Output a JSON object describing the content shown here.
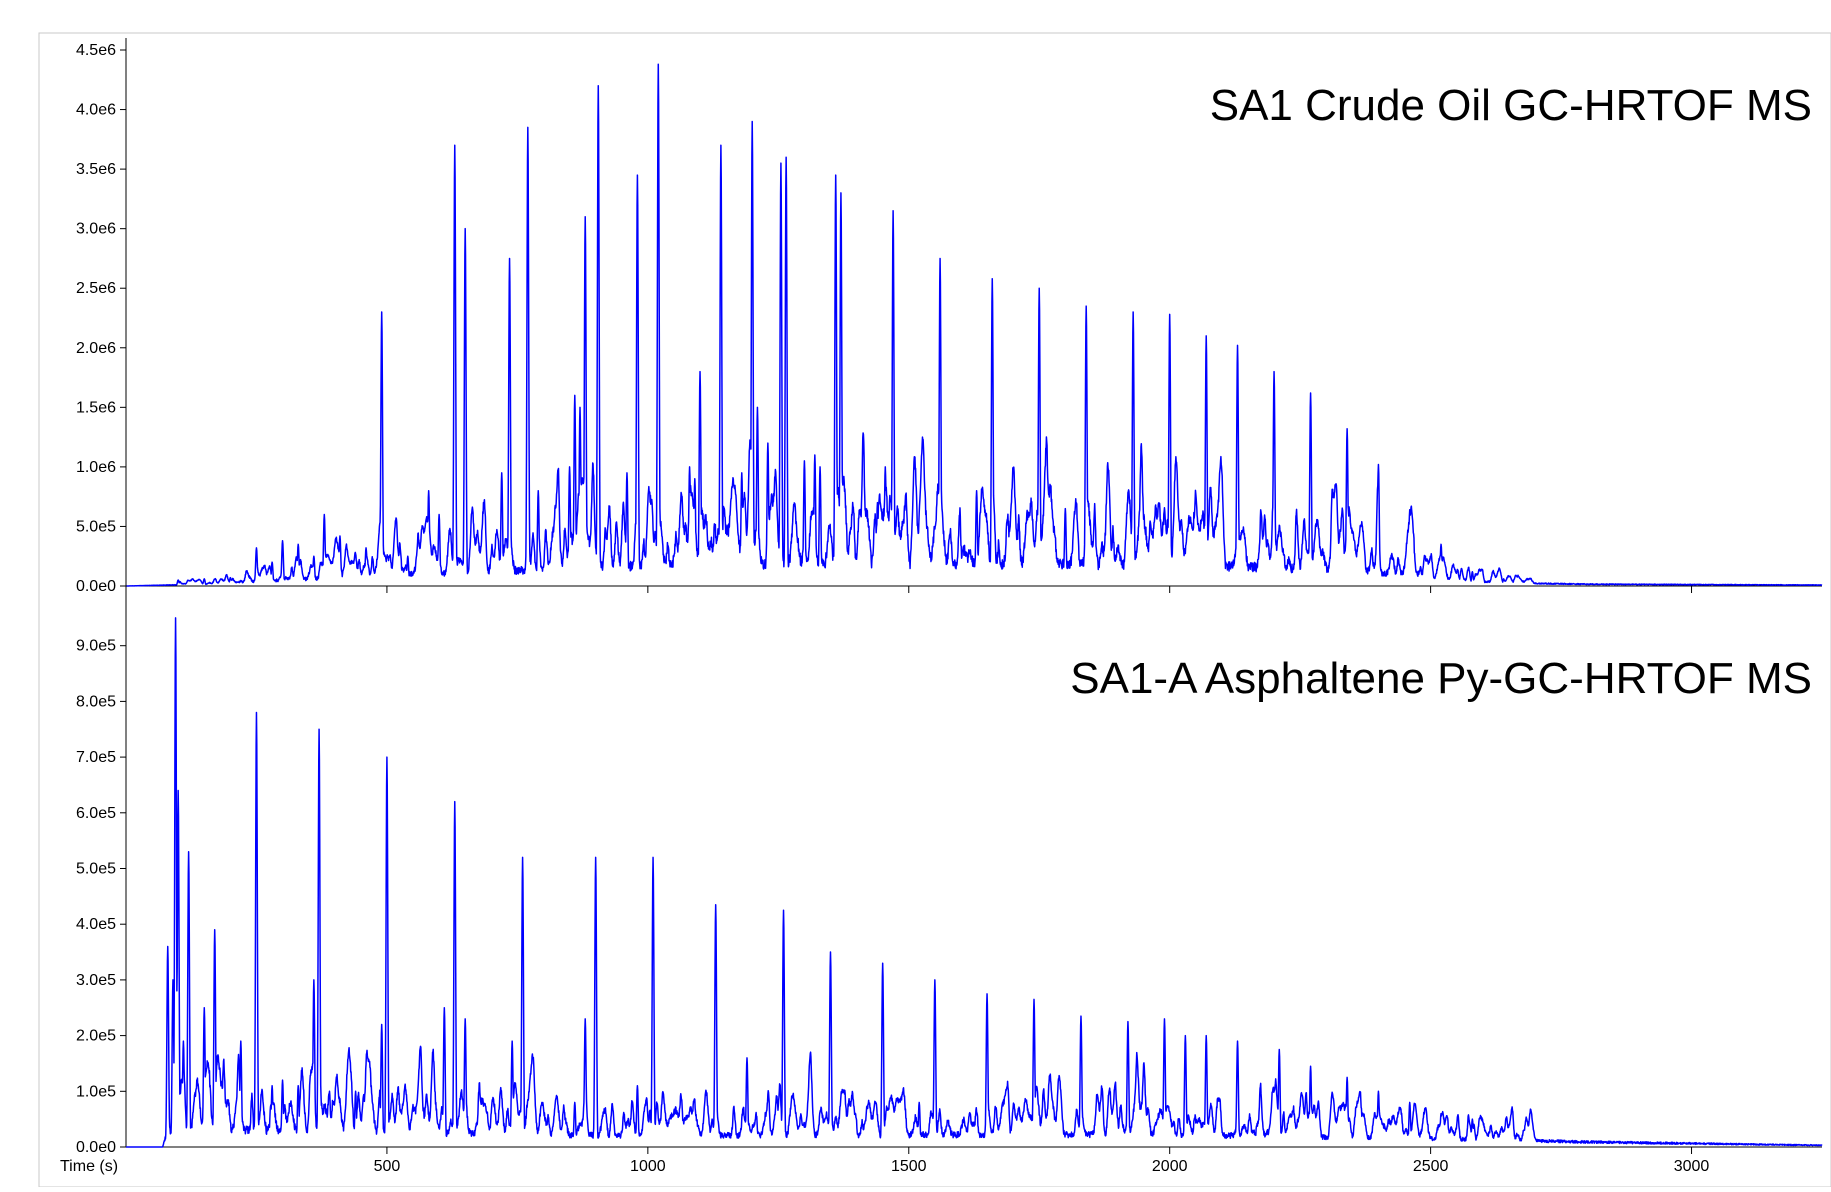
{
  "colors": {
    "series": "#0000ff",
    "axis": "#000000",
    "frame": "#c8c8c8",
    "background": "#ffffff"
  },
  "chart_data": [
    {
      "type": "line",
      "title": "SA1 Crude Oil GC-HRTOF MS",
      "xlabel": "Time (s)",
      "ylabel": "",
      "xlim": [
        0,
        3250
      ],
      "ylim": [
        0,
        4500000
      ],
      "grid": false,
      "yticks": [
        {
          "value": 0,
          "label": "0.0e0"
        },
        {
          "value": 500000,
          "label": "5.0e5"
        },
        {
          "value": 1000000,
          "label": "1.0e6"
        },
        {
          "value": 1500000,
          "label": "1.5e6"
        },
        {
          "value": 2000000,
          "label": "2.0e6"
        },
        {
          "value": 2500000,
          "label": "2.5e6"
        },
        {
          "value": 3000000,
          "label": "3.0e6"
        },
        {
          "value": 3500000,
          "label": "3.5e6"
        },
        {
          "value": 4000000,
          "label": "4.0e6"
        },
        {
          "value": 4500000,
          "label": "4.5e6"
        }
      ],
      "baseline": [
        [
          0,
          0
        ],
        [
          150,
          15000
        ],
        [
          300,
          50000
        ],
        [
          500,
          90000
        ],
        [
          800,
          140000
        ],
        [
          1000,
          170000
        ],
        [
          1500,
          190000
        ],
        [
          2000,
          180000
        ],
        [
          2300,
          140000
        ],
        [
          2450,
          100000
        ],
        [
          2550,
          50000
        ],
        [
          2650,
          25000
        ],
        [
          2800,
          15000
        ],
        [
          3250,
          8000
        ]
      ],
      "peaks": [
        [
          100,
          50000
        ],
        [
          150,
          60000
        ],
        [
          200,
          70000
        ],
        [
          250,
          320000
        ],
        [
          280,
          200000
        ],
        [
          300,
          380000
        ],
        [
          330,
          350000
        ],
        [
          360,
          250000
        ],
        [
          380,
          600000
        ],
        [
          410,
          420000
        ],
        [
          460,
          320000
        ],
        [
          490,
          2300000
        ],
        [
          540,
          250000
        ],
        [
          580,
          800000
        ],
        [
          600,
          600000
        ],
        [
          630,
          3700000
        ],
        [
          650,
          3000000
        ],
        [
          720,
          950000
        ],
        [
          735,
          2750000
        ],
        [
          770,
          3850000
        ],
        [
          790,
          800000
        ],
        [
          850,
          1000000
        ],
        [
          860,
          1600000
        ],
        [
          870,
          1500000
        ],
        [
          880,
          3100000
        ],
        [
          905,
          4200000
        ],
        [
          960,
          950000
        ],
        [
          980,
          3450000
        ],
        [
          1020,
          4380000
        ],
        [
          1080,
          1000000
        ],
        [
          1090,
          900000
        ],
        [
          1100,
          1800000
        ],
        [
          1140,
          3700000
        ],
        [
          1180,
          950000
        ],
        [
          1200,
          3900000
        ],
        [
          1210,
          1500000
        ],
        [
          1230,
          1200000
        ],
        [
          1255,
          3550000
        ],
        [
          1265,
          3600000
        ],
        [
          1300,
          1050000
        ],
        [
          1320,
          1100000
        ],
        [
          1330,
          1000000
        ],
        [
          1360,
          3450000
        ],
        [
          1370,
          3300000
        ],
        [
          1410,
          750000
        ],
        [
          1440,
          700000
        ],
        [
          1455,
          1000000
        ],
        [
          1470,
          3150000
        ],
        [
          1560,
          2750000
        ],
        [
          1630,
          800000
        ],
        [
          1660,
          2580000
        ],
        [
          1750,
          2500000
        ],
        [
          1800,
          650000
        ],
        [
          1840,
          2350000
        ],
        [
          1930,
          2300000
        ],
        [
          2000,
          2280000
        ],
        [
          2070,
          2100000
        ],
        [
          2130,
          2020000
        ],
        [
          2200,
          1800000
        ],
        [
          2270,
          1620000
        ],
        [
          2340,
          1320000
        ],
        [
          2400,
          1020000
        ],
        [
          2460,
          640000
        ],
        [
          2520,
          350000
        ],
        [
          2580,
          120000
        ],
        [
          2640,
          60000
        ]
      ]
    },
    {
      "type": "line",
      "title": "SA1-A Asphaltene Py-GC-HRTOF MS",
      "xlabel": "Time (s)",
      "ylabel": "",
      "xlim": [
        0,
        3250
      ],
      "ylim": [
        0,
        1000000
      ],
      "grid": false,
      "yticks": [
        {
          "value": 0,
          "label": "0.0e0"
        },
        {
          "value": 100000,
          "label": "1.0e5"
        },
        {
          "value": 200000,
          "label": "2.0e5"
        },
        {
          "value": 300000,
          "label": "3.0e5"
        },
        {
          "value": 400000,
          "label": "4.0e5"
        },
        {
          "value": 500000,
          "label": "5.0e5"
        },
        {
          "value": 600000,
          "label": "6.0e5"
        },
        {
          "value": 700000,
          "label": "7.0e5"
        },
        {
          "value": 800000,
          "label": "8.0e5"
        },
        {
          "value": 900000,
          "label": "9.0e5"
        }
      ],
      "xticks": [
        {
          "value": 500,
          "label": "500"
        },
        {
          "value": 1000,
          "label": "1000"
        },
        {
          "value": 1500,
          "label": "1500"
        },
        {
          "value": 2000,
          "label": "2000"
        },
        {
          "value": 2500,
          "label": "2500"
        },
        {
          "value": 3000,
          "label": "3000"
        }
      ],
      "baseline": [
        [
          0,
          0
        ],
        [
          70,
          0
        ],
        [
          80,
          30000
        ],
        [
          120,
          30000
        ],
        [
          300,
          30000
        ],
        [
          600,
          25000
        ],
        [
          1000,
          20000
        ],
        [
          1500,
          22000
        ],
        [
          2000,
          22000
        ],
        [
          2500,
          15000
        ],
        [
          2800,
          9000
        ],
        [
          3250,
          3000
        ]
      ],
      "peaks": [
        [
          80,
          360000
        ],
        [
          90,
          300000
        ],
        [
          95,
          950000
        ],
        [
          100,
          640000
        ],
        [
          110,
          190000
        ],
        [
          120,
          530000
        ],
        [
          150,
          250000
        ],
        [
          170,
          390000
        ],
        [
          220,
          190000
        ],
        [
          250,
          780000
        ],
        [
          280,
          110000
        ],
        [
          300,
          120000
        ],
        [
          330,
          110000
        ],
        [
          360,
          300000
        ],
        [
          370,
          750000
        ],
        [
          390,
          100000
        ],
        [
          440,
          100000
        ],
        [
          490,
          220000
        ],
        [
          500,
          700000
        ],
        [
          570,
          70000
        ],
        [
          610,
          250000
        ],
        [
          630,
          620000
        ],
        [
          650,
          230000
        ],
        [
          740,
          190000
        ],
        [
          760,
          520000
        ],
        [
          860,
          80000
        ],
        [
          880,
          230000
        ],
        [
          900,
          520000
        ],
        [
          980,
          110000
        ],
        [
          1010,
          520000
        ],
        [
          1130,
          435000
        ],
        [
          1190,
          160000
        ],
        [
          1260,
          425000
        ],
        [
          1310,
          70000
        ],
        [
          1350,
          350000
        ],
        [
          1450,
          330000
        ],
        [
          1520,
          80000
        ],
        [
          1550,
          300000
        ],
        [
          1650,
          275000
        ],
        [
          1690,
          60000
        ],
        [
          1740,
          265000
        ],
        [
          1830,
          235000
        ],
        [
          1920,
          225000
        ],
        [
          1990,
          230000
        ],
        [
          2030,
          200000
        ],
        [
          2070,
          200000
        ],
        [
          2130,
          190000
        ],
        [
          2210,
          175000
        ],
        [
          2270,
          145000
        ],
        [
          2340,
          125000
        ],
        [
          2400,
          100000
        ],
        [
          2460,
          80000
        ],
        [
          2520,
          60000
        ],
        [
          2580,
          50000
        ],
        [
          2640,
          30000
        ],
        [
          2700,
          15000
        ]
      ]
    }
  ]
}
